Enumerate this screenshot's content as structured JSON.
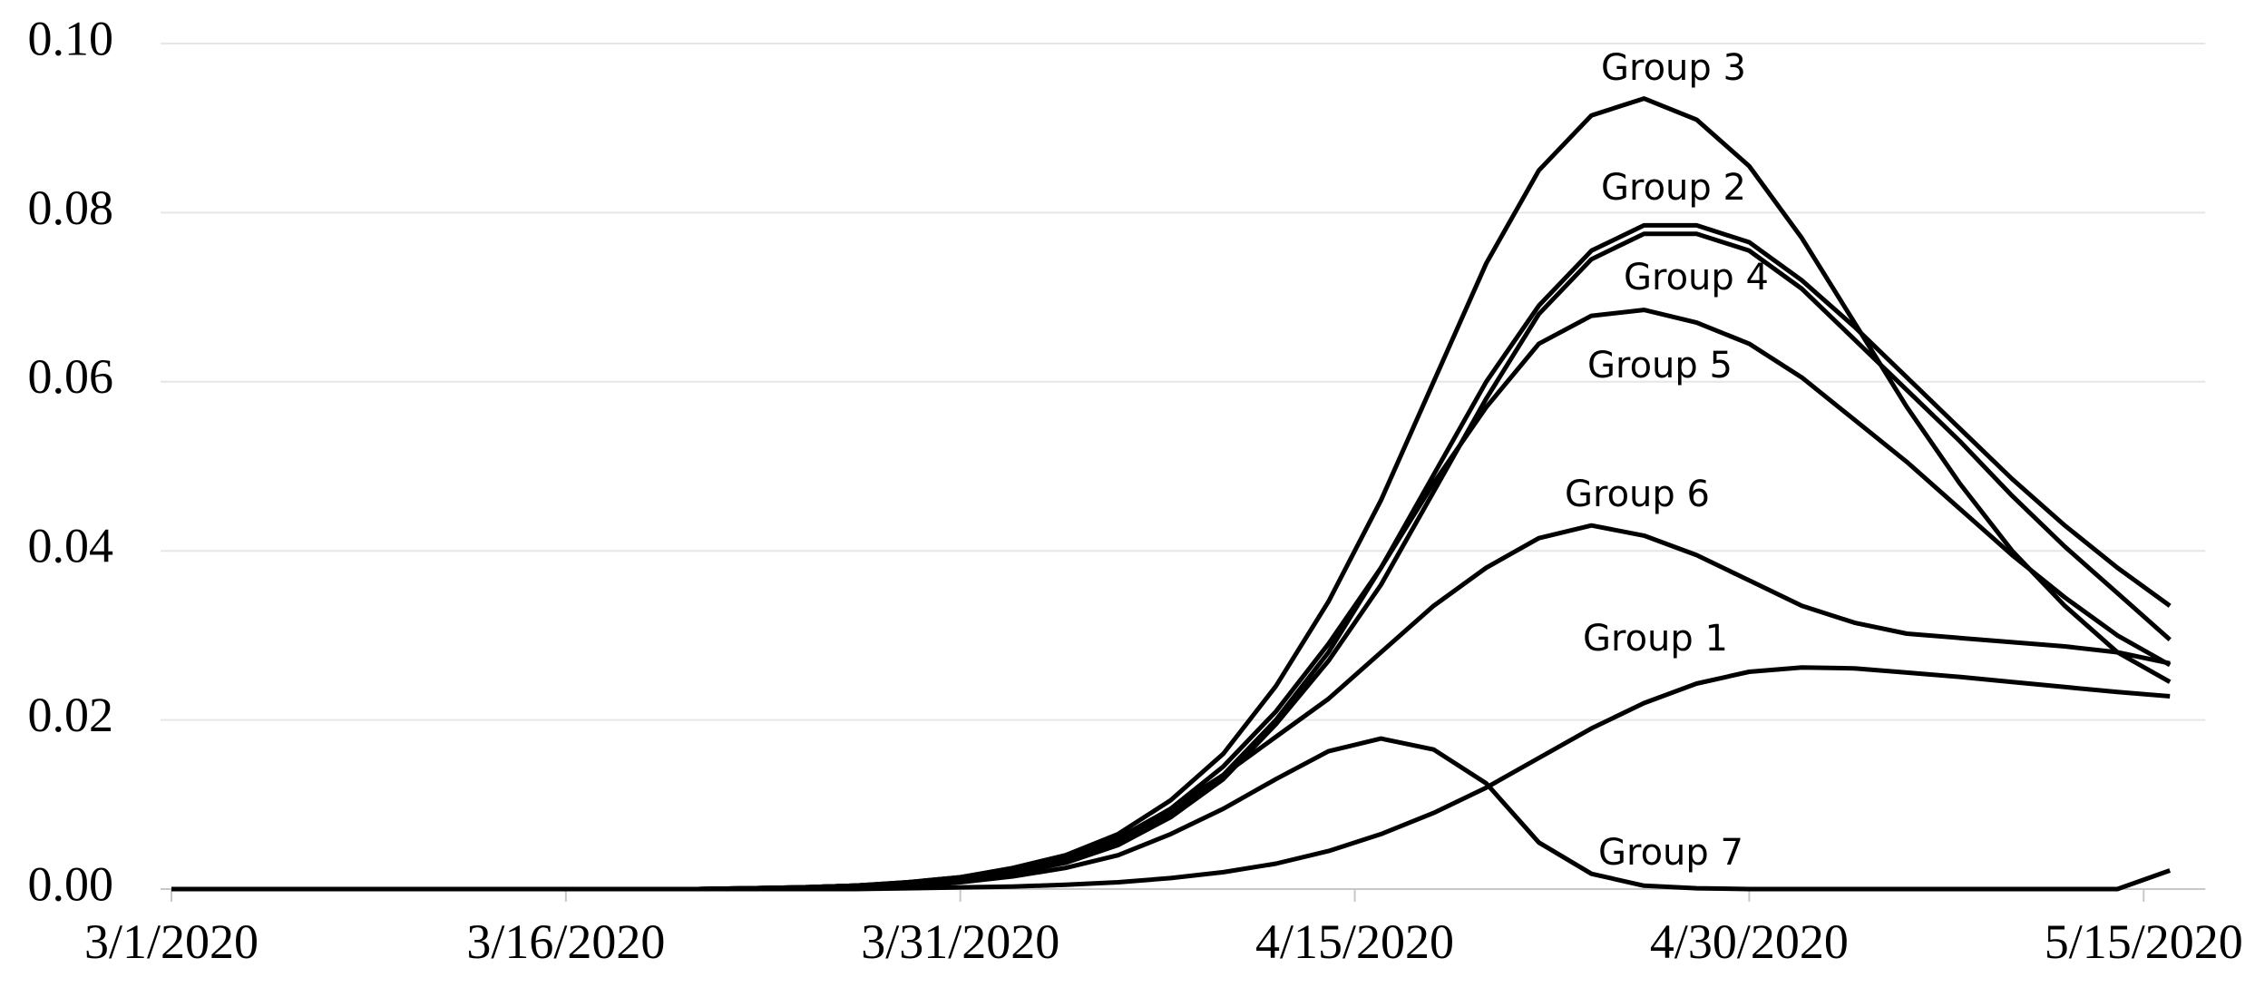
{
  "chart_data": {
    "type": "line",
    "x": [
      "3/1/2020",
      "3/3/2020",
      "3/5/2020",
      "3/7/2020",
      "3/9/2020",
      "3/11/2020",
      "3/13/2020",
      "3/15/2020",
      "3/17/2020",
      "3/19/2020",
      "3/21/2020",
      "3/23/2020",
      "3/25/2020",
      "3/27/2020",
      "3/29/2020",
      "3/31/2020",
      "4/2/2020",
      "4/4/2020",
      "4/6/2020",
      "4/8/2020",
      "4/10/2020",
      "4/12/2020",
      "4/14/2020",
      "4/16/2020",
      "4/18/2020",
      "4/20/2020",
      "4/22/2020",
      "4/24/2020",
      "4/26/2020",
      "4/28/2020",
      "4/30/2020",
      "5/2/2020",
      "5/4/2020",
      "5/6/2020",
      "5/8/2020",
      "5/10/2020",
      "5/12/2020",
      "5/14/2020",
      "5/16/2020"
    ],
    "series": [
      {
        "name": "Group 1",
        "color": "#000000",
        "values": [
          0,
          0,
          0,
          0,
          0,
          0,
          0,
          0,
          0,
          0,
          0,
          0,
          0,
          0,
          0.0001,
          0.0002,
          0.0003,
          0.0005,
          0.0008,
          0.0013,
          0.002,
          0.003,
          0.0045,
          0.0065,
          0.009,
          0.012,
          0.0155,
          0.019,
          0.022,
          0.0243,
          0.0257,
          0.0262,
          0.0261,
          0.0256,
          0.0251,
          0.0245,
          0.0239,
          0.0233,
          0.0228
        ]
      },
      {
        "name": "Group 2",
        "color": "#000000",
        "values": [
          0,
          0,
          0,
          0,
          0,
          0,
          0,
          0,
          0,
          0,
          0,
          0.0001,
          0.0002,
          0.0004,
          0.0007,
          0.0012,
          0.002,
          0.0033,
          0.0055,
          0.009,
          0.0135,
          0.02,
          0.028,
          0.038,
          0.049,
          0.06,
          0.069,
          0.0755,
          0.0785,
          0.0785,
          0.0765,
          0.072,
          0.0665,
          0.0605,
          0.0545,
          0.0485,
          0.043,
          0.038,
          0.0335
        ]
      },
      {
        "name": "Group 3",
        "color": "#000000",
        "values": [
          0,
          0,
          0,
          0,
          0,
          0,
          0,
          0,
          0,
          0,
          0,
          0.0001,
          0.0002,
          0.0004,
          0.0008,
          0.0014,
          0.0025,
          0.004,
          0.0065,
          0.0105,
          0.016,
          0.024,
          0.034,
          0.046,
          0.06,
          0.074,
          0.085,
          0.0915,
          0.0935,
          0.091,
          0.0855,
          0.077,
          0.067,
          0.057,
          0.048,
          0.04,
          0.0335,
          0.028,
          0.0245
        ]
      },
      {
        "name": "Group 4",
        "color": "#000000",
        "values": [
          0,
          0,
          0,
          0,
          0,
          0,
          0,
          0,
          0,
          0,
          0,
          0.0001,
          0.0002,
          0.0004,
          0.0007,
          0.0012,
          0.0019,
          0.0031,
          0.0052,
          0.0085,
          0.013,
          0.0195,
          0.027,
          0.036,
          0.047,
          0.058,
          0.068,
          0.0745,
          0.0775,
          0.0775,
          0.0755,
          0.071,
          0.065,
          0.059,
          0.053,
          0.0465,
          0.0405,
          0.035,
          0.0295
        ]
      },
      {
        "name": "Group 5",
        "color": "#000000",
        "values": [
          0,
          0,
          0,
          0,
          0,
          0,
          0,
          0,
          0,
          0,
          0,
          0.0001,
          0.0002,
          0.0004,
          0.0007,
          0.0013,
          0.0022,
          0.0036,
          0.0058,
          0.0095,
          0.0145,
          0.021,
          0.029,
          0.038,
          0.048,
          0.057,
          0.0645,
          0.0678,
          0.0685,
          0.067,
          0.0645,
          0.0605,
          0.0555,
          0.0505,
          0.045,
          0.0395,
          0.0345,
          0.03,
          0.0265
        ]
      },
      {
        "name": "Group 6",
        "color": "#000000",
        "values": [
          0,
          0,
          0,
          0,
          0,
          0,
          0,
          0,
          0,
          0,
          0,
          0.0001,
          0.0002,
          0.0004,
          0.0008,
          0.0014,
          0.0024,
          0.0038,
          0.006,
          0.0095,
          0.0135,
          0.018,
          0.0225,
          0.028,
          0.0335,
          0.038,
          0.0415,
          0.043,
          0.0418,
          0.0395,
          0.0365,
          0.0335,
          0.0315,
          0.0302,
          0.0297,
          0.0292,
          0.0287,
          0.028,
          0.0267
        ]
      },
      {
        "name": "Group 7",
        "color": "#000000",
        "values": [
          0,
          0,
          0,
          0,
          0,
          0,
          0,
          0,
          0,
          0,
          0,
          0,
          0,
          0.0001,
          0.0003,
          0.0008,
          0.0015,
          0.0025,
          0.004,
          0.0065,
          0.0095,
          0.013,
          0.0163,
          0.0178,
          0.0165,
          0.0125,
          0.0055,
          0.0018,
          0.0004,
          0.0001,
          0,
          0,
          0,
          0,
          0,
          0,
          0,
          0,
          0.0022
        ]
      }
    ],
    "xlim": [
      "3/1/2020",
      "5/17/2020"
    ],
    "xticks": [
      "3/1/2020",
      "3/16/2020",
      "3/31/2020",
      "4/15/2020",
      "4/30/2020",
      "5/15/2020"
    ],
    "ylim": [
      0,
      0.1
    ],
    "yticks": [
      {
        "value": 0,
        "label": "0.00"
      },
      {
        "value": 0.02,
        "label": "0.02"
      },
      {
        "value": 0.04,
        "label": "0.04"
      },
      {
        "value": 0.06,
        "label": "0.06"
      },
      {
        "value": 0.08,
        "label": "0.08"
      },
      {
        "value": 0.1,
        "label": "0.10"
      }
    ],
    "grid": true
  }
}
